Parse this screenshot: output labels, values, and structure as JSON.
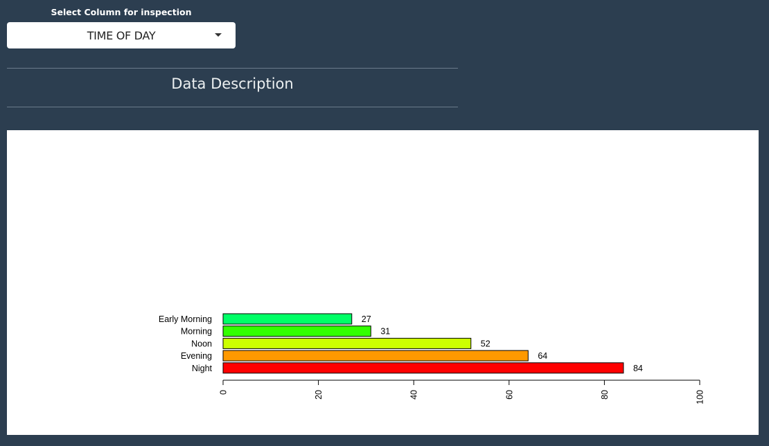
{
  "select": {
    "label": "Select Column for inspection",
    "value": "TIME OF DAY",
    "caret_icon": "caret-down-icon"
  },
  "section": {
    "title": "Data Description"
  },
  "chart_data": {
    "type": "bar",
    "orientation": "horizontal",
    "categories": [
      "Early Morning",
      "Morning",
      "Noon",
      "Evening",
      "Night"
    ],
    "values": [
      27,
      31,
      52,
      64,
      84
    ],
    "colors": [
      "#00ff66",
      "#33ff00",
      "#ccff00",
      "#ff9900",
      "#ff0000"
    ],
    "xlim": [
      0,
      100
    ],
    "xticks": [
      0,
      20,
      40,
      60,
      80,
      100
    ],
    "title": "",
    "xlabel": "",
    "ylabel": "",
    "grid": false,
    "data_labels": true
  },
  "footer": {
    "text": "",
    "text_cut": true
  }
}
